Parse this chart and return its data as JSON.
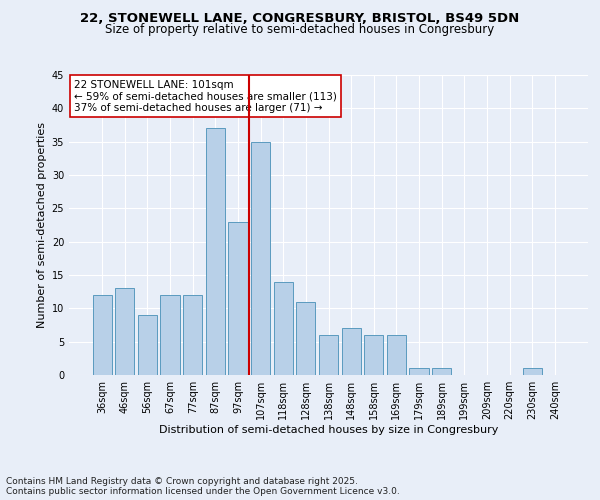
{
  "title_line1": "22, STONEWELL LANE, CONGRESBURY, BRISTOL, BS49 5DN",
  "title_line2": "Size of property relative to semi-detached houses in Congresbury",
  "xlabel": "Distribution of semi-detached houses by size in Congresbury",
  "ylabel": "Number of semi-detached properties",
  "categories": [
    "36sqm",
    "46sqm",
    "56sqm",
    "67sqm",
    "77sqm",
    "87sqm",
    "97sqm",
    "107sqm",
    "118sqm",
    "128sqm",
    "138sqm",
    "148sqm",
    "158sqm",
    "169sqm",
    "179sqm",
    "189sqm",
    "199sqm",
    "209sqm",
    "220sqm",
    "230sqm",
    "240sqm"
  ],
  "values": [
    12,
    13,
    9,
    12,
    12,
    37,
    23,
    35,
    14,
    11,
    6,
    7,
    6,
    6,
    1,
    1,
    0,
    0,
    0,
    1,
    0
  ],
  "bar_color": "#b8d0e8",
  "bar_edge_color": "#5a9abf",
  "vline_color": "#cc0000",
  "annotation_title": "22 STONEWELL LANE: 101sqm",
  "annotation_line1": "← 59% of semi-detached houses are smaller (113)",
  "annotation_line2": "37% of semi-detached houses are larger (71) →",
  "annotation_box_color": "#ffffff",
  "annotation_box_edge": "#cc0000",
  "ylim": [
    0,
    45
  ],
  "yticks": [
    0,
    5,
    10,
    15,
    20,
    25,
    30,
    35,
    40,
    45
  ],
  "background_color": "#e8eef8",
  "footer_line1": "Contains HM Land Registry data © Crown copyright and database right 2025.",
  "footer_line2": "Contains public sector information licensed under the Open Government Licence v3.0.",
  "title_fontsize": 9.5,
  "subtitle_fontsize": 8.5,
  "axis_label_fontsize": 8,
  "tick_fontsize": 7,
  "footer_fontsize": 6.5,
  "annot_fontsize": 7.5
}
